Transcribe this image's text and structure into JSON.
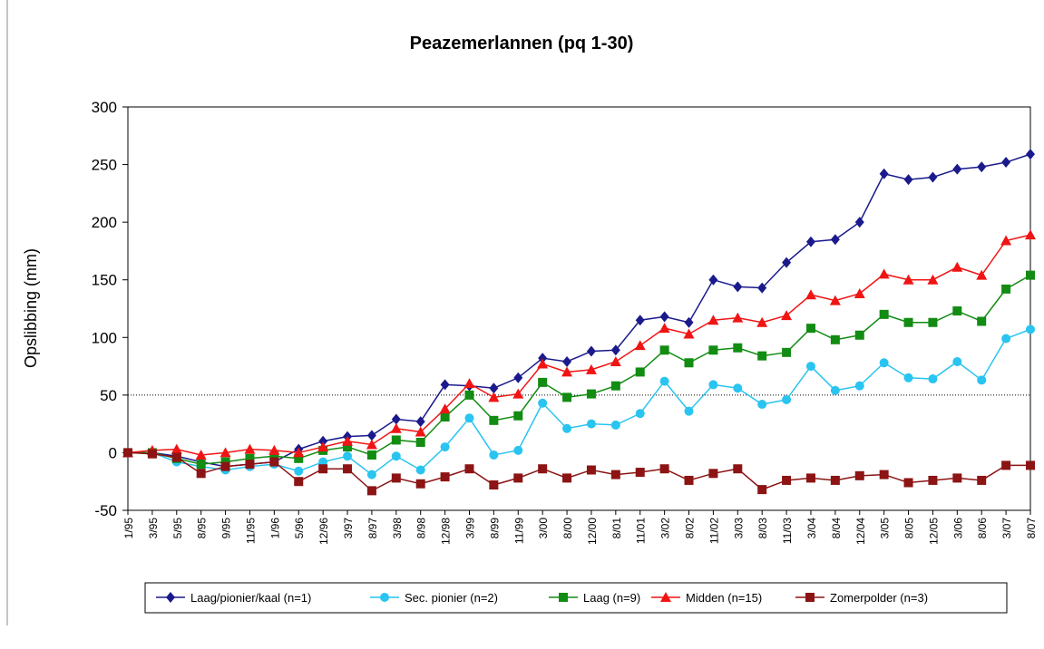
{
  "chart_data": {
    "type": "line",
    "title": "Peazemerlannen (pq 1-30)",
    "y_label": "Opslibbing (mm)",
    "categories": [
      "1/95",
      "3/95",
      "5/95",
      "8/95",
      "9/95",
      "11/95",
      "1/96",
      "5/96",
      "12/96",
      "3/97",
      "8/97",
      "3/98",
      "8/98",
      "12/98",
      "3/99",
      "8/99",
      "11/99",
      "3/00",
      "8/00",
      "12/00",
      "8/01",
      "11/01",
      "3/02",
      "8/02",
      "11/02",
      "3/03",
      "8/03",
      "11/03",
      "3/04",
      "8/04",
      "12/04",
      "3/05",
      "8/05",
      "12/05",
      "3/06",
      "8/06",
      "3/07",
      "8/07"
    ],
    "ylim": [
      -50,
      300
    ],
    "yticks": [
      -50,
      0,
      50,
      100,
      150,
      200,
      250,
      300
    ],
    "reference_line": 50,
    "series": [
      {
        "name": "Laag/pionier/kaal (n=1)",
        "color": "#1a1a8c",
        "marker": "diamond",
        "values": [
          0,
          0,
          -3,
          -8,
          -12,
          -10,
          -8,
          3,
          10,
          14,
          15,
          29,
          27,
          59,
          58,
          56,
          65,
          82,
          79,
          88,
          89,
          115,
          118,
          113,
          150,
          144,
          143,
          165,
          183,
          185,
          200,
          242,
          237,
          239,
          246,
          248,
          252,
          259
        ]
      },
      {
        "name": "Sec. pionier (n=2)",
        "color": "#29c4f0",
        "marker": "circle",
        "values": [
          0,
          0,
          -8,
          -12,
          -15,
          -12,
          -10,
          -16,
          -8,
          -3,
          -19,
          -3,
          -15,
          5,
          30,
          -2,
          2,
          43,
          21,
          25,
          24,
          34,
          62,
          36,
          59,
          56,
          42,
          46,
          75,
          54,
          58,
          78,
          65,
          64,
          79,
          63,
          99,
          107
        ]
      },
      {
        "name": "Laag (n=9)",
        "color": "#128c12",
        "marker": "square",
        "values": [
          0,
          0,
          -5,
          -10,
          -8,
          -5,
          -3,
          -5,
          2,
          5,
          -2,
          11,
          9,
          31,
          50,
          28,
          32,
          61,
          48,
          51,
          58,
          70,
          89,
          78,
          89,
          91,
          84,
          87,
          108,
          98,
          102,
          120,
          113,
          113,
          123,
          114,
          142,
          154
        ]
      },
      {
        "name": "Midden (n=15)",
        "color": "#f01414",
        "marker": "triangle",
        "values": [
          0,
          2,
          3,
          -2,
          0,
          3,
          2,
          0,
          5,
          10,
          7,
          21,
          18,
          38,
          60,
          48,
          51,
          77,
          70,
          72,
          79,
          93,
          108,
          103,
          115,
          117,
          113,
          119,
          137,
          132,
          138,
          155,
          150,
          150,
          161,
          154,
          184,
          189
        ]
      },
      {
        "name": "Zomerpolder (n=3)",
        "color": "#8c1414",
        "marker": "square",
        "values": [
          0,
          -1,
          -4,
          -18,
          -12,
          -10,
          -8,
          -25,
          -14,
          -14,
          -33,
          -22,
          -27,
          -21,
          -14,
          -28,
          -22,
          -14,
          -22,
          -15,
          -19,
          -17,
          -14,
          -24,
          -18,
          -14,
          -32,
          -24,
          -22,
          -24,
          -20,
          -19,
          -26,
          -24,
          -22,
          -24,
          -11,
          -11
        ]
      }
    ]
  }
}
